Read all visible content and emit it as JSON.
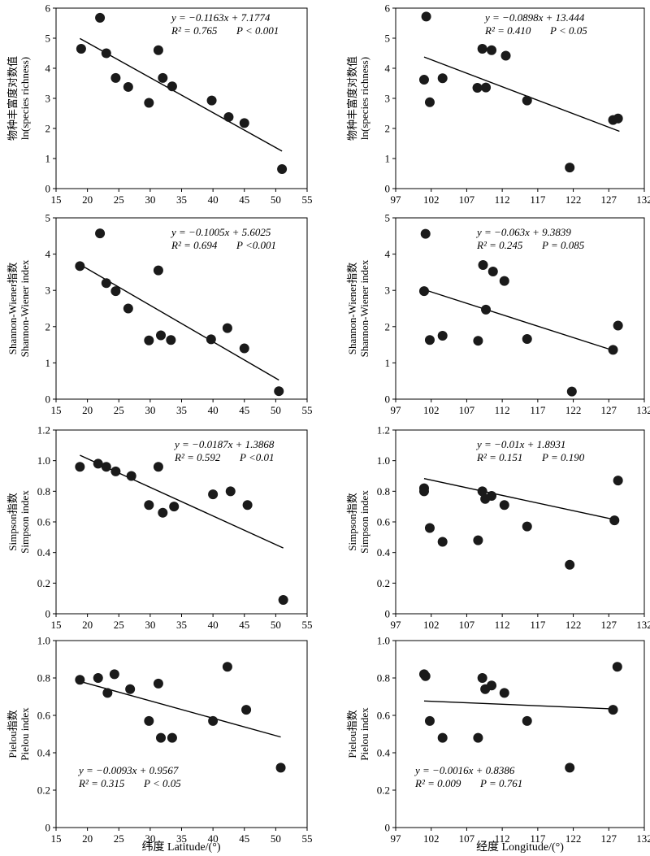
{
  "chart_data": [
    {
      "type": "scatter",
      "ylabel_cn": "物种丰富度对数值",
      "ylabel_en": "ln(species richness)",
      "xlim": [
        15,
        55
      ],
      "ylim": [
        0,
        6
      ],
      "xticks": [
        "15",
        "20",
        "25",
        "30",
        "35",
        "40",
        "45",
        "50",
        "55"
      ],
      "yticks": [
        "0",
        "1",
        "2",
        "3",
        "4",
        "5",
        "6"
      ],
      "points": [
        [
          19,
          4.65
        ],
        [
          22,
          5.68
        ],
        [
          23,
          4.5
        ],
        [
          24.5,
          3.68
        ],
        [
          26.5,
          3.38
        ],
        [
          29.8,
          2.85
        ],
        [
          31.3,
          4.6
        ],
        [
          32,
          3.68
        ],
        [
          33.5,
          3.4
        ],
        [
          39.8,
          2.93
        ],
        [
          42.5,
          2.38
        ],
        [
          45,
          2.18
        ],
        [
          51,
          0.65
        ]
      ],
      "fit": {
        "slope": -0.1163,
        "intercept": 7.1774,
        "x": [
          18.8,
          51
        ]
      },
      "eq": "y = −0.1163x + 7.1774",
      "r2": "R² = 0.765",
      "p": "P < 0.001"
    },
    {
      "type": "scatter",
      "ylabel_cn": "物种丰富度对数值",
      "ylabel_en": "ln(species richness)",
      "xlim": [
        97,
        132
      ],
      "ylim": [
        0,
        6
      ],
      "xticks": [
        "97",
        "102",
        "107",
        "112",
        "117",
        "122",
        "127",
        "132"
      ],
      "yticks": [
        "0",
        "1",
        "2",
        "3",
        "4",
        "5",
        "6"
      ],
      "points": [
        [
          101,
          3.62
        ],
        [
          101.3,
          5.72
        ],
        [
          101.8,
          2.87
        ],
        [
          103.6,
          3.67
        ],
        [
          108.5,
          3.35
        ],
        [
          109.2,
          4.65
        ],
        [
          109.7,
          3.36
        ],
        [
          110.5,
          4.6
        ],
        [
          112.5,
          4.42
        ],
        [
          115.5,
          2.93
        ],
        [
          121.5,
          0.7
        ],
        [
          127.6,
          2.28
        ],
        [
          128.3,
          2.33
        ]
      ],
      "fit": {
        "slope": -0.0898,
        "intercept": 13.444,
        "x": [
          101,
          128.5
        ]
      },
      "eq": "y = −0.0898x + 13.444",
      "r2": "R² = 0.410",
      "p": "P < 0.05"
    },
    {
      "type": "scatter",
      "ylabel_cn": "Shannon-Wiener指数",
      "ylabel_en": "Shannon-Wiener index",
      "xlim": [
        15,
        55
      ],
      "ylim": [
        0,
        5
      ],
      "xticks": [
        "15",
        "20",
        "25",
        "30",
        "35",
        "40",
        "45",
        "50",
        "55"
      ],
      "yticks": [
        "0",
        "1",
        "2",
        "3",
        "4",
        "5"
      ],
      "points": [
        [
          18.8,
          3.67
        ],
        [
          22,
          4.57
        ],
        [
          23,
          3.2
        ],
        [
          24.5,
          2.98
        ],
        [
          26.5,
          2.5
        ],
        [
          29.8,
          1.62
        ],
        [
          31.3,
          3.55
        ],
        [
          31.7,
          1.76
        ],
        [
          33.3,
          1.63
        ],
        [
          39.7,
          1.65
        ],
        [
          42.3,
          1.96
        ],
        [
          45,
          1.4
        ],
        [
          50.5,
          0.22
        ]
      ],
      "fit": {
        "slope": -0.1005,
        "intercept": 5.6025,
        "x": [
          18.8,
          50.5
        ]
      },
      "eq": "y = −0.1005x + 5.6025",
      "r2": "R² = 0.694",
      "p": "P <0.001"
    },
    {
      "type": "scatter",
      "ylabel_cn": "Shannon-Wiener指数",
      "ylabel_en": "Shannon-Wiener index",
      "xlim": [
        97,
        132
      ],
      "ylim": [
        0,
        5
      ],
      "xticks": [
        "97",
        "102",
        "107",
        "112",
        "117",
        "122",
        "127",
        "132"
      ],
      "yticks": [
        "0",
        "1",
        "2",
        "3",
        "4",
        "5"
      ],
      "points": [
        [
          101,
          2.98
        ],
        [
          101.2,
          4.56
        ],
        [
          101.8,
          1.63
        ],
        [
          103.6,
          1.75
        ],
        [
          108.6,
          1.61
        ],
        [
          109.3,
          3.7
        ],
        [
          109.7,
          2.47
        ],
        [
          110.7,
          3.52
        ],
        [
          112.3,
          3.26
        ],
        [
          115.5,
          1.66
        ],
        [
          121.8,
          0.21
        ],
        [
          127.6,
          1.36
        ],
        [
          128.3,
          2.03
        ]
      ],
      "fit": {
        "slope": -0.063,
        "intercept": 9.3839,
        "x": [
          101,
          127.6
        ]
      },
      "eq": "y = −0.063x + 9.3839",
      "r2": "R² = 0.245",
      "p": "P = 0.085"
    },
    {
      "type": "scatter",
      "ylabel_cn": "Simpson指数",
      "ylabel_en": "Simpson index",
      "xlim": [
        15,
        55
      ],
      "ylim": [
        0,
        1.2
      ],
      "xticks": [
        "15",
        "20",
        "25",
        "30",
        "35",
        "40",
        "45",
        "50",
        "55"
      ],
      "yticks": [
        "0",
        "0.2",
        "0.4",
        "0.6",
        "0.8",
        "1.0",
        "1.2"
      ],
      "points": [
        [
          18.8,
          0.96
        ],
        [
          21.7,
          0.98
        ],
        [
          23,
          0.96
        ],
        [
          24.5,
          0.93
        ],
        [
          27,
          0.9
        ],
        [
          29.8,
          0.71
        ],
        [
          31.3,
          0.96
        ],
        [
          32,
          0.66
        ],
        [
          33.8,
          0.7
        ],
        [
          40,
          0.78
        ],
        [
          42.8,
          0.8
        ],
        [
          45.5,
          0.71
        ],
        [
          51.2,
          0.09
        ]
      ],
      "fit": {
        "slope": -0.0187,
        "intercept": 1.3868,
        "x": [
          18.8,
          51.2
        ]
      },
      "eq": "y = −0.0187x + 1.3868",
      "r2": "R² = 0.592",
      "p": "P <0.01"
    },
    {
      "type": "scatter",
      "ylabel_cn": "Simpson指数",
      "ylabel_en": "Simpson index",
      "xlim": [
        97,
        132
      ],
      "ylim": [
        0,
        1.2
      ],
      "xticks": [
        "97",
        "102",
        "107",
        "112",
        "117",
        "122",
        "127",
        "132"
      ],
      "yticks": [
        "0",
        "0.2",
        "0.4",
        "0.6",
        "0.8",
        "1.0",
        "1.2"
      ],
      "points": [
        [
          101,
          0.82
        ],
        [
          101,
          0.8
        ],
        [
          101.8,
          0.56
        ],
        [
          103.6,
          0.47
        ],
        [
          108.6,
          0.48
        ],
        [
          109.2,
          0.8
        ],
        [
          109.6,
          0.75
        ],
        [
          110.5,
          0.77
        ],
        [
          112.3,
          0.71
        ],
        [
          115.5,
          0.57
        ],
        [
          121.5,
          0.32
        ],
        [
          127.8,
          0.61
        ],
        [
          128.3,
          0.87
        ]
      ],
      "fit": {
        "slope": -0.01,
        "intercept": 1.8931,
        "x": [
          101,
          128
        ]
      },
      "eq": "y = −0.01x + 1.8931",
      "r2": "R² = 0.151",
      "p": "P = 0.190"
    },
    {
      "type": "scatter",
      "ylabel_cn": "Pielou指数",
      "ylabel_en": "Pielou index",
      "xlim": [
        15,
        55
      ],
      "ylim": [
        0,
        1.0
      ],
      "xticks": [
        "15",
        "20",
        "25",
        "30",
        "35",
        "40",
        "45",
        "50",
        "55"
      ],
      "yticks": [
        "0",
        "0.2",
        "0.4",
        "0.6",
        "0.8",
        "1.0"
      ],
      "points": [
        [
          18.8,
          0.79
        ],
        [
          21.7,
          0.8
        ],
        [
          23.2,
          0.72
        ],
        [
          24.3,
          0.82
        ],
        [
          26.8,
          0.74
        ],
        [
          29.8,
          0.57
        ],
        [
          31.3,
          0.77
        ],
        [
          31.7,
          0.48
        ],
        [
          33.5,
          0.48
        ],
        [
          40,
          0.57
        ],
        [
          42.3,
          0.86
        ],
        [
          45.3,
          0.63
        ],
        [
          50.8,
          0.32
        ]
      ],
      "fit": {
        "slope": -0.0093,
        "intercept": 0.9567,
        "x": [
          18.8,
          50.8
        ]
      },
      "eq": "y = −0.0093x +  0.9567",
      "r2": "R² = 0.315",
      "p": "P < 0.05"
    },
    {
      "type": "scatter",
      "ylabel_cn": "Pielou指数",
      "ylabel_en": "Pielou index",
      "xlim": [
        97,
        132
      ],
      "ylim": [
        0,
        1.0
      ],
      "xticks": [
        "97",
        "102",
        "107",
        "112",
        "117",
        "122",
        "127",
        "132"
      ],
      "yticks": [
        "0",
        "0.2",
        "0.4",
        "0.6",
        "0.8",
        "1.0"
      ],
      "points": [
        [
          101,
          0.82
        ],
        [
          101.2,
          0.81
        ],
        [
          101.8,
          0.57
        ],
        [
          103.6,
          0.48
        ],
        [
          108.6,
          0.48
        ],
        [
          109.2,
          0.8
        ],
        [
          109.6,
          0.74
        ],
        [
          110.5,
          0.76
        ],
        [
          112.3,
          0.72
        ],
        [
          115.5,
          0.57
        ],
        [
          121.5,
          0.32
        ],
        [
          127.6,
          0.63
        ],
        [
          128.2,
          0.86
        ]
      ],
      "fit": {
        "slope": -0.0016,
        "intercept": 0.8386,
        "x": [
          101,
          127.6
        ]
      },
      "eq": "y = −0.0016x + 0.8386",
      "r2": "R² = 0.009",
      "p": "P = 0.761"
    }
  ],
  "xlabels": {
    "left": "纬度 Latitude/(°)",
    "right": "经度 Longitude/(°)"
  }
}
